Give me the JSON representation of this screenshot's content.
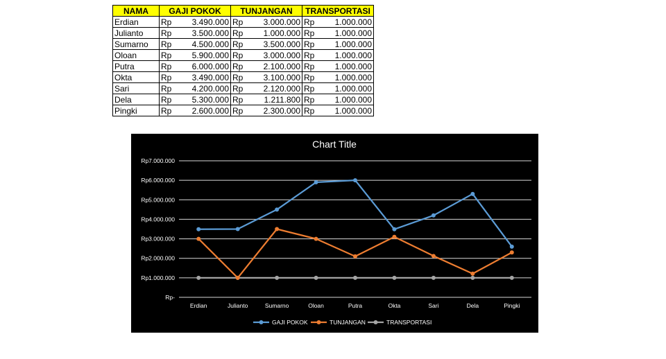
{
  "table": {
    "headers": [
      "NAMA",
      "GAJI POKOK",
      "TUNJANGAN",
      "TRANSPORTASI"
    ],
    "currency": "Rp",
    "rows": [
      {
        "name": "Erdian",
        "gaji": "3.490.000",
        "tunjangan": "3.000.000",
        "transport": "1.000.000"
      },
      {
        "name": "Julianto",
        "gaji": "3.500.000",
        "tunjangan": "1.000.000",
        "transport": "1.000.000"
      },
      {
        "name": "Sumarno",
        "gaji": "4.500.000",
        "tunjangan": "3.500.000",
        "transport": "1.000.000"
      },
      {
        "name": "Oloan",
        "gaji": "5.900.000",
        "tunjangan": "3.000.000",
        "transport": "1.000.000"
      },
      {
        "name": "Putra",
        "gaji": "6.000.000",
        "tunjangan": "2.100.000",
        "transport": "1.000.000"
      },
      {
        "name": "Okta",
        "gaji": "3.490.000",
        "tunjangan": "3.100.000",
        "transport": "1.000.000"
      },
      {
        "name": "Sari",
        "gaji": "4.200.000",
        "tunjangan": "2.120.000",
        "transport": "1.000.000"
      },
      {
        "name": "Dela",
        "gaji": "5.300.000",
        "tunjangan": "1.211.800",
        "transport": "1.000.000"
      },
      {
        "name": "Pingki",
        "gaji": "2.600.000",
        "tunjangan": "2.300.000",
        "transport": "1.000.000"
      }
    ]
  },
  "chart_data": {
    "type": "line",
    "title": "Chart Title",
    "xlabel": "",
    "ylabel": "",
    "categories": [
      "Erdian",
      "Julianto",
      "Sumarno",
      "Oloan",
      "Putra",
      "Okta",
      "Sari",
      "Dela",
      "Pingki"
    ],
    "series": [
      {
        "name": "GAJI POKOK",
        "color": "#5b9bd5",
        "values": [
          3490000,
          3500000,
          4500000,
          5900000,
          6000000,
          3490000,
          4200000,
          5300000,
          2600000
        ]
      },
      {
        "name": "TUNJANGAN",
        "color": "#ed7d31",
        "values": [
          3000000,
          1000000,
          3500000,
          3000000,
          2100000,
          3100000,
          2120000,
          1211800,
          2300000
        ]
      },
      {
        "name": "TRANSPORTASI",
        "color": "#a5a5a5",
        "values": [
          1000000,
          1000000,
          1000000,
          1000000,
          1000000,
          1000000,
          1000000,
          1000000,
          1000000
        ]
      }
    ],
    "ylim": [
      0,
      7000000
    ],
    "y_tick_labels": [
      "Rp-",
      "Rp1.000.000",
      "Rp2.000.000",
      "Rp3.000.000",
      "Rp4.000.000",
      "Rp5.000.000",
      "Rp6.000.000",
      "Rp7.000.000"
    ],
    "grid": true,
    "legend": "bottom",
    "background": "#000000",
    "gridline_color": "#d9d9d9",
    "text_color": "#ffffff"
  }
}
